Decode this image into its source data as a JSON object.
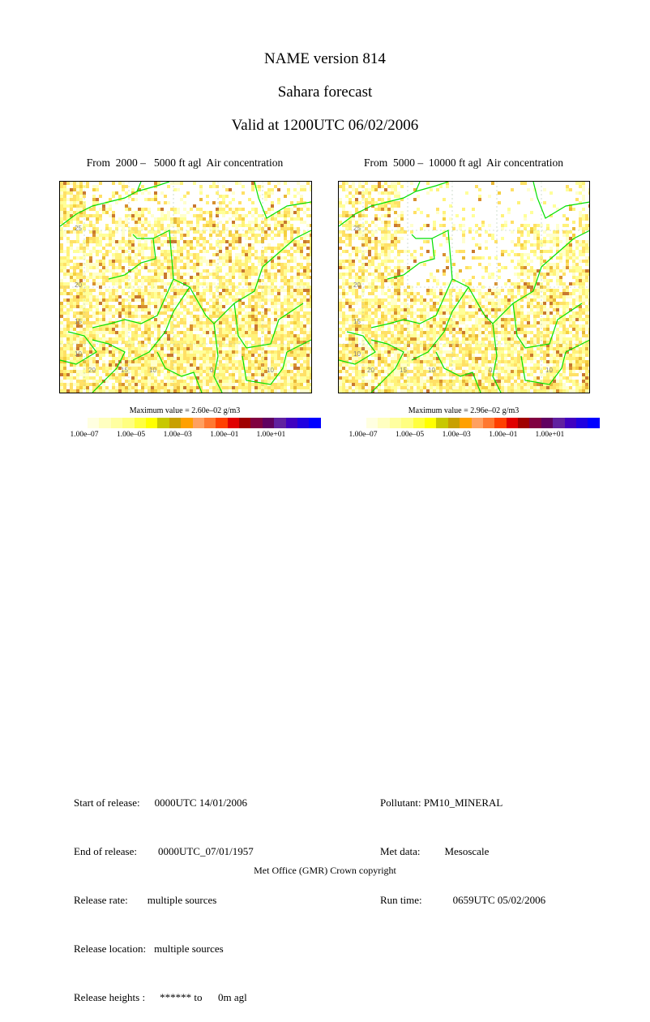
{
  "header": {
    "line1": "NAME version 814",
    "line2": "Sahara forecast",
    "line3": "Valid at 1200UTC 06/02/2006"
  },
  "panels": [
    {
      "title": "From  2000 –   5000 ft agl  Air concentration",
      "max_value": "Maximum value = 2.60e–02 g/m3",
      "lat_labels": [
        "25",
        "20",
        "15",
        "10"
      ],
      "lon_labels": [
        "20",
        "15",
        "10",
        "0",
        "10"
      ]
    },
    {
      "title": "From  5000 –  10000 ft agl  Air concentration",
      "max_value": "Maximum value = 2.96e–02 g/m3",
      "lat_labels": [
        "25",
        "20",
        "15",
        "10"
      ],
      "lon_labels": [
        "20",
        "15",
        "10",
        "0",
        "10"
      ]
    }
  ],
  "colorbar": {
    "colors": [
      "#ffffe0",
      "#ffffc0",
      "#ffffa0",
      "#ffff80",
      "#ffff40",
      "#ffff00",
      "#c8c800",
      "#c8a000",
      "#ffa000",
      "#ffa060",
      "#ff7830",
      "#ff4000",
      "#e00000",
      "#a00000",
      "#800040",
      "#600060",
      "#6020a0",
      "#4000c0",
      "#2000e0",
      "#0000ff"
    ],
    "tick_labels": [
      "1.00e–07",
      "1.00e–05",
      "1.00e–03",
      "1.00e–01",
      "1.00e+01"
    ]
  },
  "release_info": [
    {
      "label": "Start of release:",
      "value": "0000UTC 14/01/2006"
    },
    {
      "label": "End of release:",
      "value": "0000UTC_07/01/1957"
    },
    {
      "label": "Release rate:",
      "value": "multiple sources"
    },
    {
      "label": "Release location:",
      "value": "multiple sources"
    },
    {
      "label": "Release heights :",
      "value": "****** to      0m agl"
    }
  ],
  "run_info": [
    {
      "label": "Pollutant:",
      "value": "PM10_MINERAL"
    },
    {
      "label": "Met data:",
      "value": "Mesoscale"
    },
    {
      "label": "Run time:",
      "value": "0659UTC 05/02/2006"
    }
  ],
  "footer": "Met Office (GMR)  Crown copyright",
  "colors": {
    "border_green": "#00e000",
    "dust_light": "#ffff99",
    "dust_mid": "#e8c040",
    "dust_dark": "#c87830"
  }
}
